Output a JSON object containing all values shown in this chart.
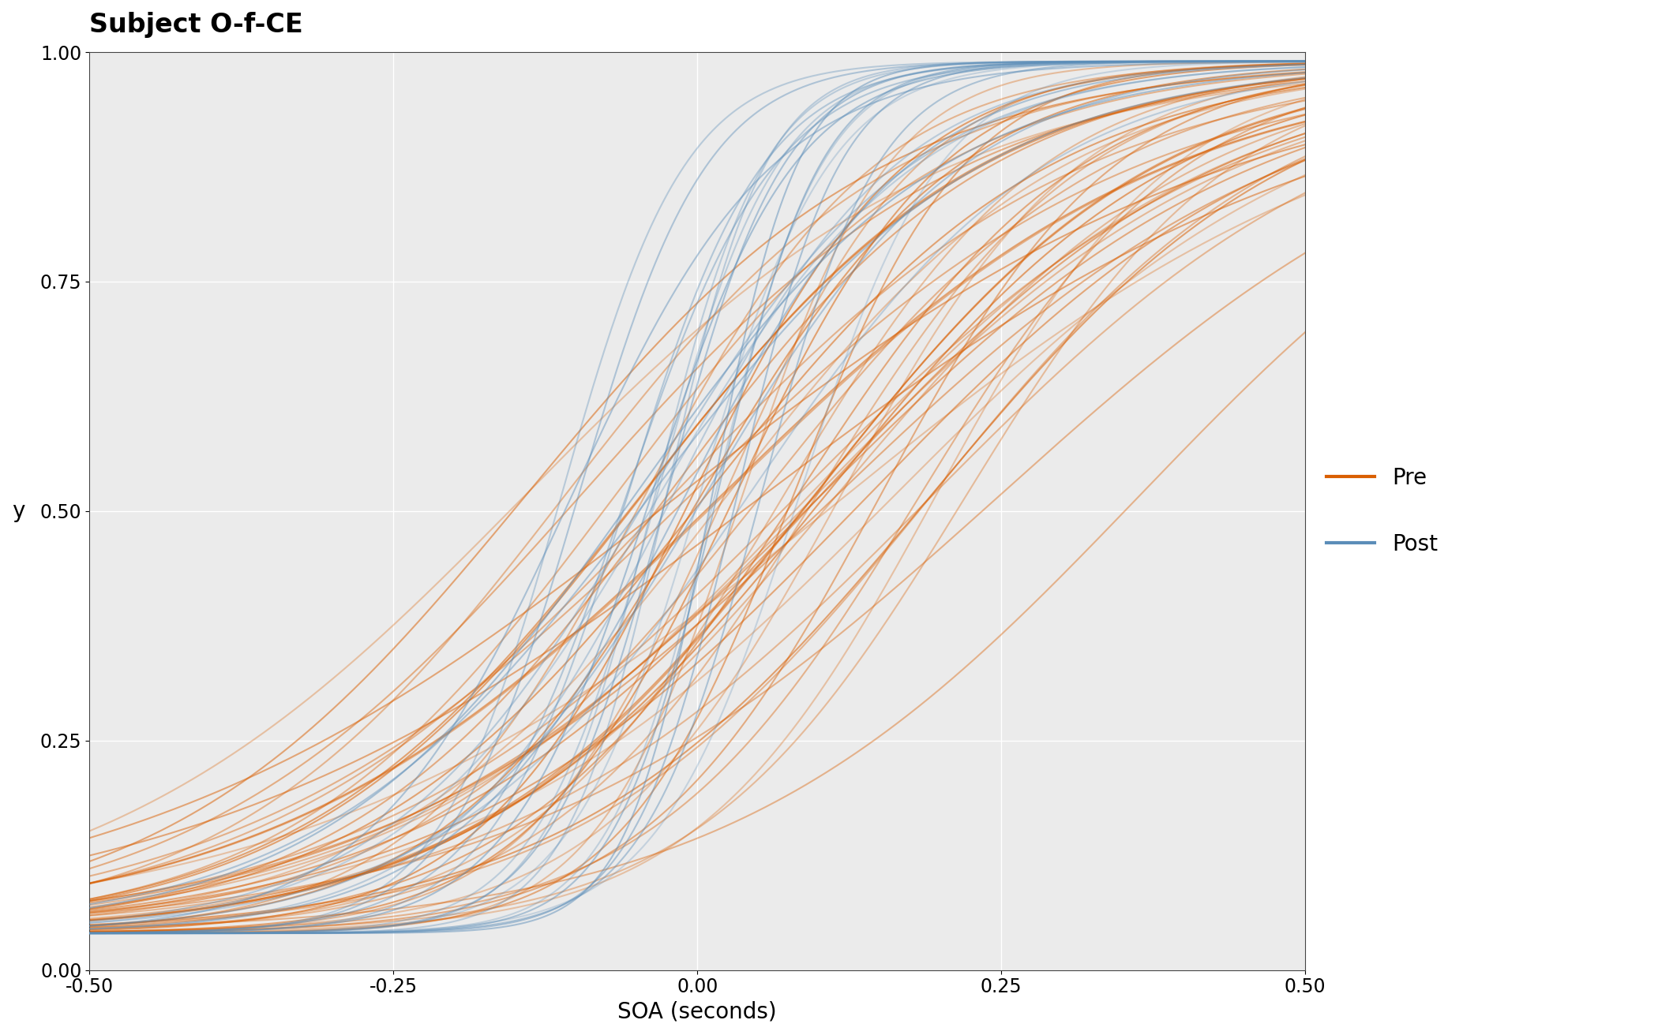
{
  "title": "Subject O-f-CE",
  "xlabel": "SOA (seconds)",
  "ylabel": "y",
  "xlim": [
    -0.5,
    0.5
  ],
  "ylim": [
    0.0,
    1.0
  ],
  "x_ticks": [
    -0.5,
    -0.25,
    0.0,
    0.25,
    0.5
  ],
  "y_ticks": [
    0.0,
    0.25,
    0.5,
    0.75,
    1.0
  ],
  "background_color": "#ffffff",
  "panel_color": "#ebebeb",
  "grid_color": "#ffffff",
  "pre_color": "#d95f02",
  "post_color": "#5b8db8",
  "pre_label": "Pre",
  "post_label": "Post",
  "title_fontsize": 24,
  "axis_label_fontsize": 20,
  "tick_fontsize": 17,
  "legend_fontsize": 20,
  "n_pre": 50,
  "n_post": 25,
  "pre_alpha": 0.4,
  "post_alpha": 0.35,
  "pre_lw": 1.5,
  "post_lw": 1.5,
  "pre_mu_mean": 0.07,
  "pre_mu_std": 0.09,
  "pre_sigma_mean": 0.14,
  "pre_sigma_std": 0.045,
  "post_mu_mean": -0.02,
  "post_mu_std": 0.05,
  "post_sigma_mean": 0.07,
  "post_sigma_std": 0.03,
  "gamma": 0.04,
  "lambda": 0.01
}
